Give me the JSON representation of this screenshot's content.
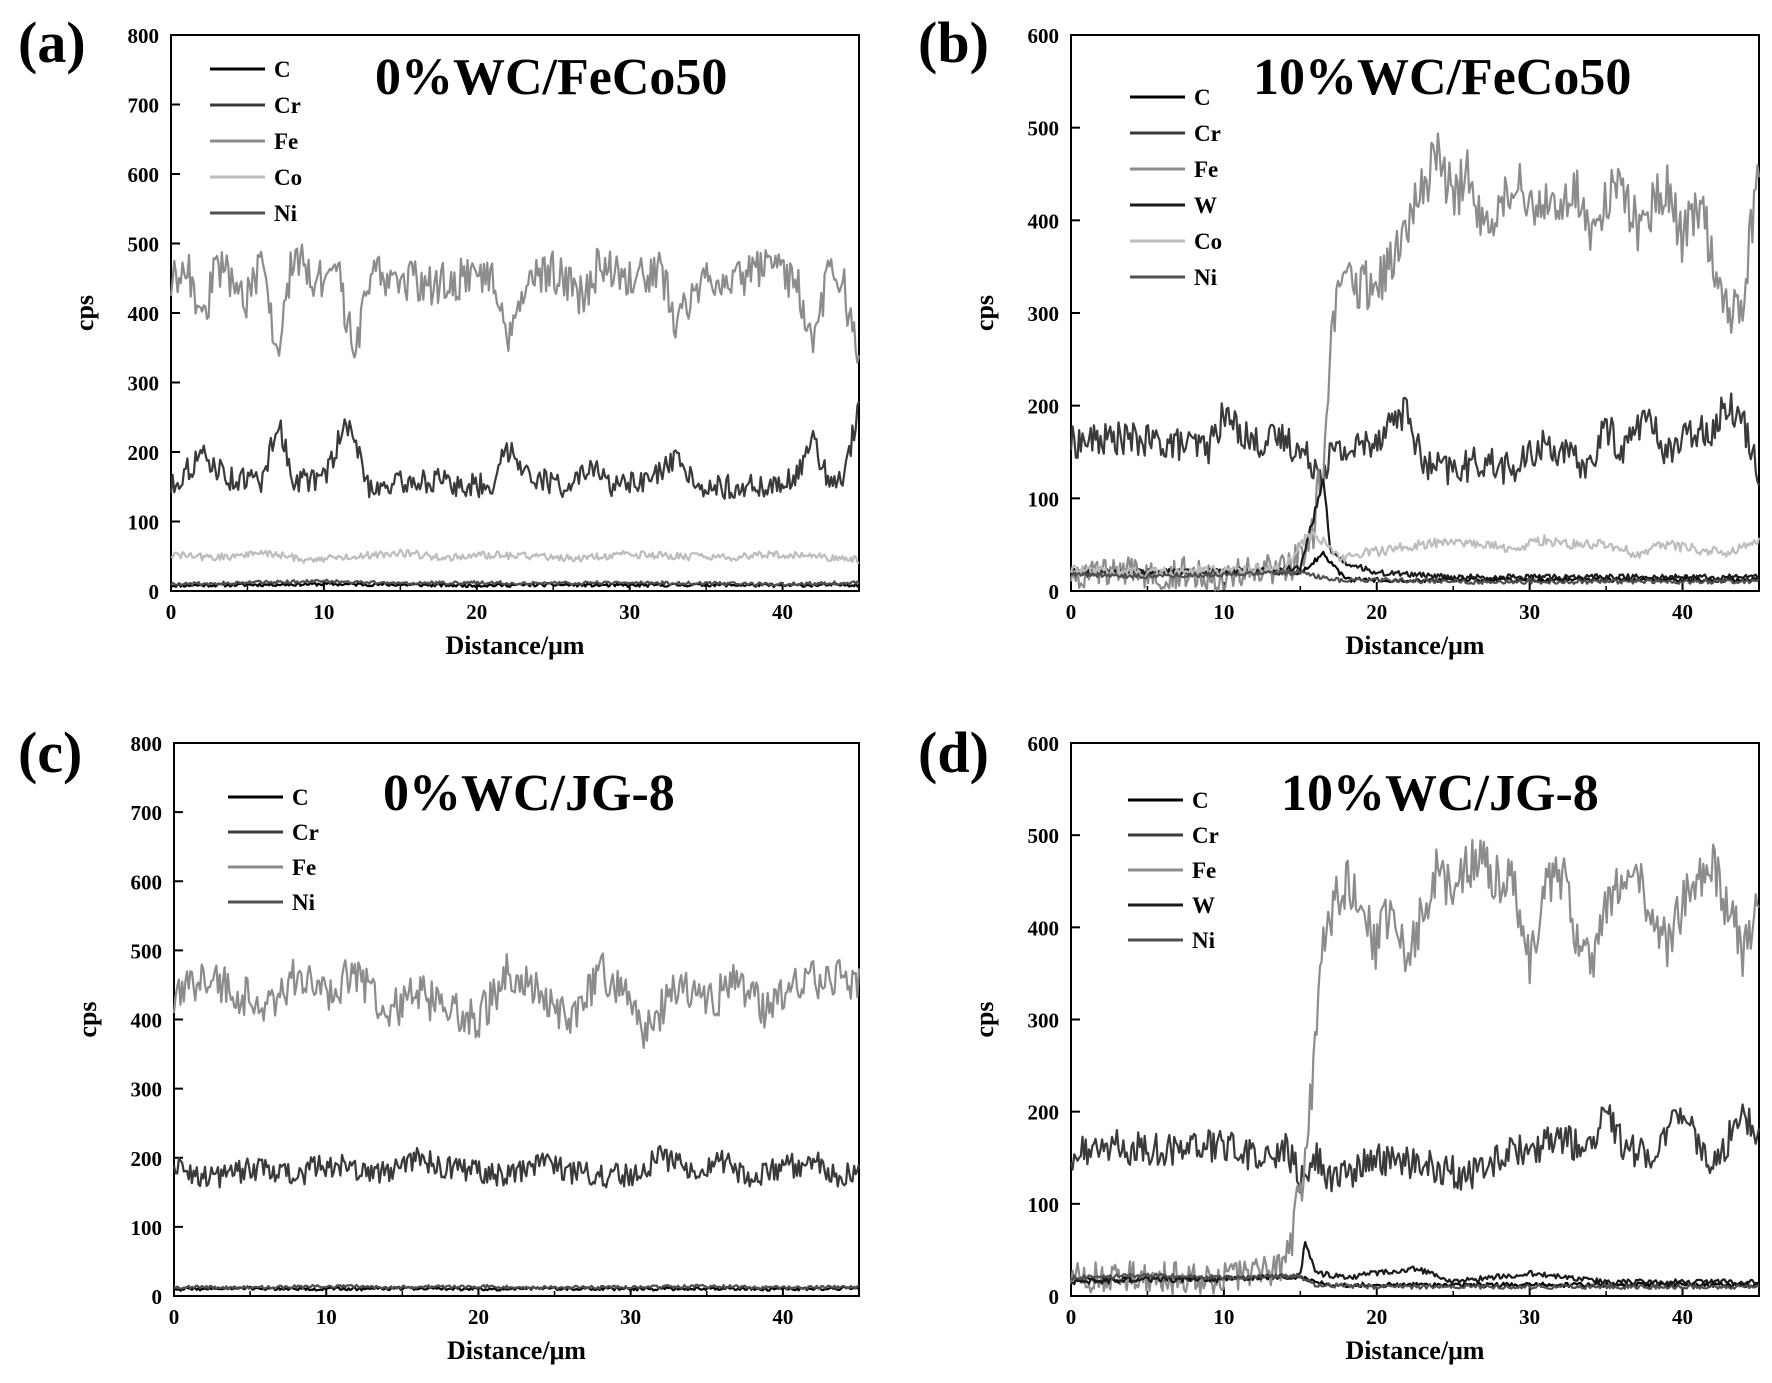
{
  "figure": {
    "panels": [
      {
        "letter": "(a)",
        "title": "0%WC/FeCo50"
      },
      {
        "letter": "(b)",
        "title": "10%WC/FeCo50"
      },
      {
        "letter": "(c)",
        "title": "0%WC/JG-8"
      },
      {
        "letter": "(d)",
        "title": "10%WC/JG-8"
      }
    ]
  },
  "chart_data": [
    {
      "type": "line",
      "panel": "(a)",
      "title": "0%WC/FeCo50",
      "xlabel": "Distance/μm",
      "ylabel": "cps",
      "xlim": [
        0,
        45
      ],
      "ylim": [
        0,
        800
      ],
      "xticks": [
        0,
        10,
        20,
        30,
        40
      ],
      "yticks": [
        0,
        100,
        200,
        300,
        400,
        500,
        600,
        700,
        800
      ],
      "grid": false,
      "legend_position": "top-left",
      "series": [
        {
          "name": "C",
          "color": "#000000",
          "x": [
            0,
            5,
            10,
            15,
            20,
            25,
            30,
            35,
            40,
            45
          ],
          "y": [
            8,
            9,
            10,
            9,
            8,
            9,
            8,
            9,
            8,
            9
          ]
        },
        {
          "name": "Cr",
          "color": "#3a3a3a",
          "x": [
            0,
            2,
            4,
            6,
            7,
            8,
            10,
            11.5,
            13,
            15,
            17,
            19,
            21,
            22,
            24,
            26,
            27.5,
            29,
            31,
            33,
            35,
            37,
            39,
            41,
            42,
            43,
            44,
            45
          ],
          "y": [
            150,
            195,
            160,
            160,
            245,
            160,
            160,
            245,
            150,
            155,
            160,
            150,
            155,
            205,
            160,
            150,
            175,
            150,
            155,
            185,
            150,
            150,
            150,
            165,
            215,
            160,
            160,
            270
          ]
        },
        {
          "name": "Fe",
          "color": "#8c8c8c",
          "x": [
            0,
            1,
            2,
            3,
            4,
            5,
            6,
            7,
            8,
            9,
            10,
            11,
            12,
            13,
            15,
            17,
            19,
            21,
            22,
            23,
            25,
            27,
            28,
            30,
            32,
            33,
            35,
            37,
            39,
            41,
            42,
            43,
            44,
            45
          ],
          "y": [
            440,
            480,
            380,
            470,
            450,
            420,
            470,
            330,
            490,
            460,
            440,
            450,
            335,
            460,
            450,
            440,
            450,
            460,
            370,
            440,
            460,
            420,
            470,
            450,
            460,
            390,
            455,
            450,
            470,
            440,
            355,
            460,
            440,
            320
          ]
        },
        {
          "name": "Co",
          "color": "#bdbdbd",
          "x": [
            0,
            3,
            6,
            9,
            12,
            15,
            18,
            21,
            24,
            27,
            30,
            33,
            36,
            39,
            42,
            45
          ],
          "y": [
            52,
            48,
            55,
            45,
            50,
            55,
            48,
            52,
            50,
            47,
            53,
            50,
            48,
            52,
            50,
            45
          ]
        },
        {
          "name": "Ni",
          "color": "#4f4f4f",
          "x": [
            0,
            5,
            10,
            15,
            20,
            25,
            30,
            35,
            40,
            45
          ],
          "y": [
            10,
            12,
            14,
            11,
            12,
            11,
            12,
            11,
            10,
            12
          ]
        }
      ]
    },
    {
      "type": "line",
      "panel": "(b)",
      "title": "10%WC/FeCo50",
      "xlabel": "Distance/μm",
      "ylabel": "cps",
      "xlim": [
        0,
        45
      ],
      "ylim": [
        0,
        600
      ],
      "xticks": [
        0,
        10,
        20,
        30,
        40
      ],
      "yticks": [
        0,
        100,
        200,
        300,
        400,
        500,
        600
      ],
      "grid": false,
      "legend_position": "top-left",
      "series": [
        {
          "name": "C",
          "color": "#000000",
          "x": [
            0,
            5,
            10,
            15,
            16.5,
            18,
            25,
            30,
            35,
            40,
            45
          ],
          "y": [
            22,
            22,
            20,
            20,
            40,
            12,
            12,
            12,
            12,
            12,
            12
          ]
        },
        {
          "name": "Cr",
          "color": "#3a3a3a",
          "x": [
            0,
            3,
            6,
            9,
            10,
            12,
            14,
            15,
            16.5,
            17,
            18,
            20,
            21,
            22,
            23,
            25,
            27,
            29,
            31,
            33,
            34,
            35,
            36,
            37.5,
            39,
            41,
            42,
            43,
            44,
            45
          ],
          "y": [
            160,
            165,
            160,
            155,
            190,
            160,
            165,
            150,
            130,
            150,
            150,
            165,
            185,
            195,
            135,
            130,
            140,
            130,
            160,
            140,
            135,
            180,
            150,
            190,
            150,
            175,
            175,
            205,
            180,
            130
          ]
        },
        {
          "name": "Fe",
          "color": "#8c8c8c",
          "x": [
            0,
            5,
            10,
            14,
            15.5,
            16.5,
            17,
            17.5,
            18,
            19,
            20,
            21,
            22,
            23,
            24,
            25,
            26,
            27,
            28,
            29,
            30,
            31,
            32,
            33,
            34,
            35,
            36,
            37,
            38,
            39,
            40,
            41,
            42,
            43,
            44,
            45
          ],
          "y": [
            18,
            20,
            18,
            22,
            45,
            130,
            270,
            320,
            330,
            330,
            340,
            350,
            390,
            440,
            470,
            420,
            460,
            380,
            410,
            440,
            420,
            430,
            400,
            440,
            380,
            420,
            450,
            390,
            420,
            440,
            380,
            420,
            360,
            300,
            320,
            460
          ]
        },
        {
          "name": "W",
          "color": "#1a1a1a",
          "x": [
            0,
            5,
            10,
            15,
            16.5,
            17,
            18,
            20,
            25,
            30,
            35,
            40,
            45
          ],
          "y": [
            20,
            20,
            22,
            25,
            120,
            40,
            30,
            20,
            15,
            15,
            15,
            15,
            15
          ]
        },
        {
          "name": "Co",
          "color": "#bdbdbd",
          "x": [
            0,
            5,
            10,
            14,
            15.5,
            16.5,
            17.5,
            19,
            21,
            23,
            25,
            27,
            29,
            31,
            33,
            35,
            37,
            39,
            41,
            43,
            45
          ],
          "y": [
            22,
            20,
            22,
            25,
            60,
            55,
            35,
            40,
            45,
            50,
            55,
            50,
            45,
            55,
            50,
            50,
            40,
            50,
            45,
            40,
            55
          ]
        },
        {
          "name": "Ni",
          "color": "#4f4f4f",
          "x": [
            0,
            5,
            10,
            15,
            17,
            20,
            25,
            30,
            35,
            40,
            45
          ],
          "y": [
            18,
            16,
            18,
            20,
            12,
            12,
            10,
            10,
            10,
            10,
            10
          ]
        }
      ]
    },
    {
      "type": "line",
      "panel": "(c)",
      "title": "0%WC/JG-8",
      "xlabel": "Distance/μm",
      "ylabel": "cps",
      "xlim": [
        0,
        45
      ],
      "ylim": [
        0,
        800
      ],
      "xticks": [
        0,
        10,
        20,
        30,
        40
      ],
      "yticks": [
        0,
        100,
        200,
        300,
        400,
        500,
        600,
        700,
        800
      ],
      "grid": false,
      "legend_position": "top-left",
      "series": [
        {
          "name": "C",
          "color": "#000000",
          "x": [
            0,
            5,
            10,
            15,
            20,
            25,
            30,
            35,
            40,
            45
          ],
          "y": [
            10,
            11,
            10,
            11,
            10,
            11,
            10,
            11,
            10,
            11
          ]
        },
        {
          "name": "Cr",
          "color": "#3a3a3a",
          "x": [
            0,
            2,
            4,
            6,
            8,
            10,
            12,
            14,
            16,
            18,
            20,
            22,
            24,
            26,
            28,
            30,
            32,
            34,
            36,
            38,
            40,
            42,
            44,
            45
          ],
          "y": [
            195,
            170,
            180,
            185,
            175,
            190,
            185,
            180,
            200,
            185,
            180,
            175,
            195,
            180,
            175,
            175,
            200,
            180,
            195,
            170,
            185,
            195,
            170,
            190
          ]
        },
        {
          "name": "Fe",
          "color": "#8c8c8c",
          "x": [
            0,
            2,
            4,
            6,
            8,
            10,
            12,
            14,
            16,
            18,
            20,
            22,
            24,
            26,
            28,
            30,
            31,
            33,
            35,
            37,
            39,
            41,
            43,
            45
          ],
          "y": [
            420,
            470,
            440,
            420,
            460,
            440,
            470,
            410,
            440,
            410,
            400,
            470,
            440,
            400,
            470,
            430,
            380,
            450,
            420,
            460,
            410,
            450,
            460,
            460
          ]
        },
        {
          "name": "Ni",
          "color": "#4f4f4f",
          "x": [
            0,
            5,
            10,
            15,
            20,
            25,
            30,
            35,
            40,
            45
          ],
          "y": [
            13,
            12,
            14,
            13,
            14,
            12,
            13,
            14,
            12,
            13
          ]
        }
      ]
    },
    {
      "type": "line",
      "panel": "(d)",
      "title": "10%WC/JG-8",
      "xlabel": "Distance/μm",
      "ylabel": "cps",
      "xlim": [
        0,
        45
      ],
      "ylim": [
        0,
        600
      ],
      "xticks": [
        0,
        10,
        20,
        30,
        40
      ],
      "yticks": [
        0,
        100,
        200,
        300,
        400,
        500,
        600
      ],
      "grid": false,
      "legend_position": "top-left",
      "series": [
        {
          "name": "C",
          "color": "#000000",
          "x": [
            0,
            5,
            10,
            15,
            16,
            17,
            20,
            25,
            30,
            35,
            40,
            45
          ],
          "y": [
            18,
            18,
            20,
            20,
            15,
            12,
            12,
            12,
            12,
            12,
            12,
            12
          ]
        },
        {
          "name": "Cr",
          "color": "#3a3a3a",
          "x": [
            0,
            2,
            4,
            6,
            8,
            10,
            12,
            14,
            15.3,
            16,
            17,
            18,
            20,
            22,
            24,
            26,
            28,
            30,
            32,
            34,
            35,
            36,
            38,
            40,
            41,
            42,
            43,
            44,
            45
          ],
          "y": [
            150,
            165,
            160,
            160,
            160,
            165,
            150,
            160,
            120,
            150,
            125,
            130,
            150,
            145,
            140,
            130,
            150,
            160,
            170,
            160,
            200,
            165,
            150,
            205,
            165,
            140,
            170,
            200,
            165
          ]
        },
        {
          "name": "Fe",
          "color": "#8c8c8c",
          "x": [
            0,
            5,
            10,
            14,
            15.5,
            16.5,
            17.5,
            18.5,
            20,
            21,
            22,
            23,
            24,
            25,
            26,
            27,
            28,
            29,
            30,
            31,
            32,
            33,
            34,
            35,
            36,
            37,
            38,
            39,
            40,
            41,
            42,
            43,
            44,
            45
          ],
          "y": [
            18,
            20,
            20,
            30,
            170,
            380,
            440,
            450,
            380,
            420,
            360,
            420,
            460,
            440,
            470,
            470,
            450,
            440,
            360,
            440,
            460,
            400,
            360,
            430,
            440,
            460,
            400,
            380,
            420,
            460,
            470,
            420,
            370,
            440
          ]
        },
        {
          "name": "W",
          "color": "#1a1a1a",
          "x": [
            0,
            5,
            10,
            15,
            15.3,
            16,
            18,
            20,
            22.5,
            25,
            30,
            35,
            40,
            45
          ],
          "y": [
            15,
            18,
            18,
            22,
            60,
            25,
            20,
            25,
            30,
            15,
            25,
            15,
            15,
            15
          ]
        },
        {
          "name": "Ni",
          "color": "#4f4f4f",
          "x": [
            0,
            5,
            10,
            15,
            16,
            20,
            25,
            30,
            35,
            40,
            45
          ],
          "y": [
            20,
            22,
            20,
            22,
            12,
            10,
            10,
            10,
            10,
            10,
            10
          ]
        }
      ]
    }
  ]
}
